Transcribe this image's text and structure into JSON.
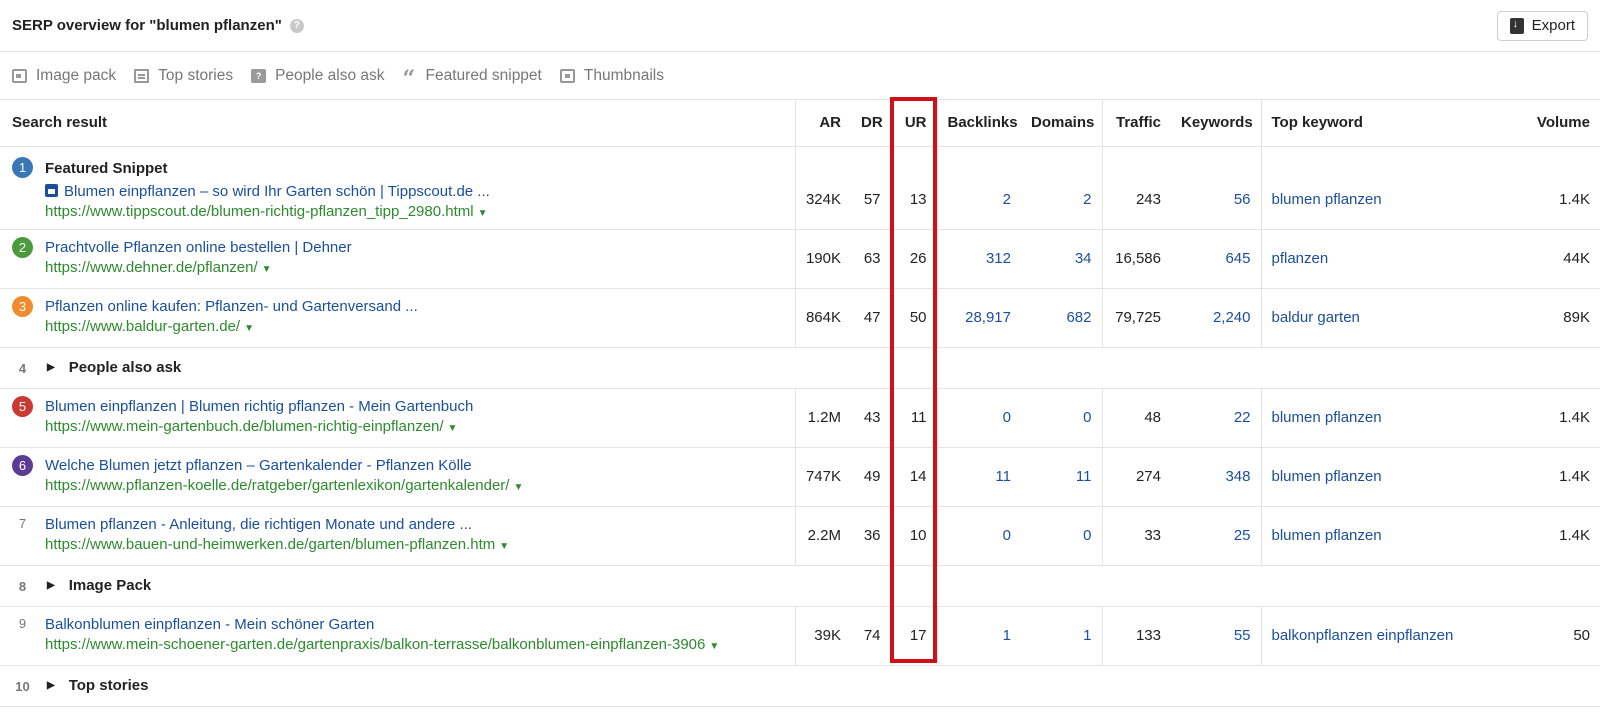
{
  "header": {
    "title": "SERP overview for \"blumen pflanzen\"",
    "help_icon": "help-icon",
    "export_label": "Export"
  },
  "filters": [
    {
      "label": "Image pack",
      "icon": "image-pack-icon"
    },
    {
      "label": "Top stories",
      "icon": "top-stories-icon"
    },
    {
      "label": "People also ask",
      "icon": "people-also-ask-icon"
    },
    {
      "label": "Featured snippet",
      "icon": "featured-snippet-icon"
    },
    {
      "label": "Thumbnails",
      "icon": "thumbnails-icon"
    }
  ],
  "columns": {
    "result": "Search result",
    "ar": "AR",
    "dr": "DR",
    "ur": "UR",
    "backlinks": "Backlinks",
    "domains": "Domains",
    "traffic": "Traffic",
    "keywords": "Keywords",
    "top_keyword": "Top keyword",
    "volume": "Volume"
  },
  "rows": [
    {
      "num": "1",
      "badge_color": "#3a78b5",
      "label": "Featured Snippet",
      "title": "Blumen einpflanzen – so wird Ihr Garten schön | Tippscout.de ...",
      "url": "https://www.tippscout.de/blumen-richtig-pflanzen_tipp_2980.html",
      "ar": "324K",
      "dr": "57",
      "ur": "13",
      "backlinks": "2",
      "domains": "2",
      "traffic": "243",
      "keywords": "56",
      "top_keyword": "blumen pflanzen",
      "volume": "1.4K"
    },
    {
      "num": "2",
      "badge_color": "#4b9a3c",
      "title": "Prachtvolle Pflanzen online bestellen | Dehner",
      "url": "https://www.dehner.de/pflanzen/",
      "ar": "190K",
      "dr": "63",
      "ur": "26",
      "backlinks": "312",
      "domains": "34",
      "traffic": "16,586",
      "keywords": "645",
      "top_keyword": "pflanzen",
      "volume": "44K"
    },
    {
      "num": "3",
      "badge_color": "#f08c2e",
      "title": "Pflanzen online kaufen: Pflanzen- und Gartenversand ...",
      "url": "https://www.baldur-garten.de/",
      "ar": "864K",
      "dr": "47",
      "ur": "50",
      "backlinks": "28,917",
      "domains": "682",
      "traffic": "79,725",
      "keywords": "2,240",
      "top_keyword": "baldur garten",
      "volume": "89K"
    },
    {
      "num": "4",
      "group": "People also ask"
    },
    {
      "num": "5",
      "badge_color": "#c83a32",
      "title": "Blumen einpflanzen | Blumen richtig pflanzen - Mein Gartenbuch",
      "url": "https://www.mein-gartenbuch.de/blumen-richtig-einpflanzen/",
      "ar": "1.2M",
      "dr": "43",
      "ur": "11",
      "backlinks": "0",
      "domains": "0",
      "traffic": "48",
      "keywords": "22",
      "top_keyword": "blumen pflanzen",
      "volume": "1.4K"
    },
    {
      "num": "6",
      "badge_color": "#5b3b94",
      "title": "Welche Blumen jetzt pflanzen – Gartenkalender - Pflanzen Kölle",
      "url": "https://www.pflanzen-koelle.de/ratgeber/gartenlexikon/gartenkalender/",
      "ar": "747K",
      "dr": "49",
      "ur": "14",
      "backlinks": "11",
      "domains": "11",
      "traffic": "274",
      "keywords": "348",
      "top_keyword": "blumen pflanzen",
      "volume": "1.4K"
    },
    {
      "num": "7",
      "title": "Blumen pflanzen - Anleitung, die richtigen Monate und andere ...",
      "url": "https://www.bauen-und-heimwerken.de/garten/blumen-pflanzen.htm",
      "ar": "2.2M",
      "dr": "36",
      "ur": "10",
      "backlinks": "0",
      "domains": "0",
      "traffic": "33",
      "keywords": "25",
      "top_keyword": "blumen pflanzen",
      "volume": "1.4K"
    },
    {
      "num": "8",
      "group": "Image Pack"
    },
    {
      "num": "9",
      "title": "Balkonblumen einpflanzen - Mein schöner Garten",
      "url": "https://www.mein-schoener-garten.de/gartenpraxis/balkon-terrasse/balkonblumen-einpflanzen-3906",
      "ar": "39K",
      "dr": "74",
      "ur": "17",
      "backlinks": "1",
      "domains": "1",
      "traffic": "133",
      "keywords": "55",
      "top_keyword": "balkonpflanzen einpflanzen",
      "volume": "50"
    },
    {
      "num": "10",
      "group": "Top stories"
    }
  ]
}
